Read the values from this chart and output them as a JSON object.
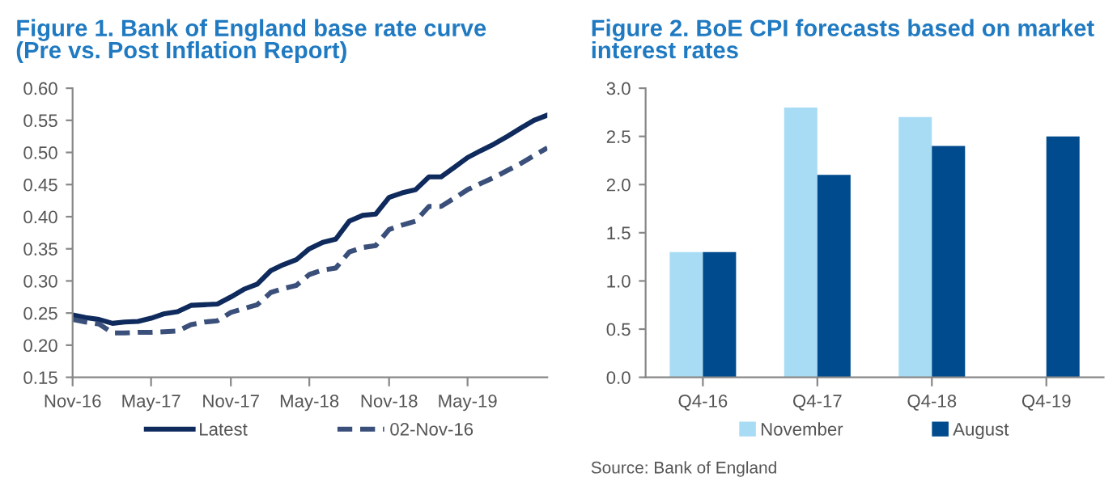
{
  "chart_data": [
    {
      "type": "line",
      "title": "Figure 1. Bank of England base rate curve\n(Pre vs. Post Inflation Report)",
      "x": [
        "2016-11",
        "2016-12",
        "2017-01",
        "2017-02",
        "2017-03",
        "2017-04",
        "2017-05",
        "2017-06",
        "2017-07",
        "2017-08",
        "2017-09",
        "2017-10",
        "2017-11",
        "2017-12",
        "2018-01",
        "2018-02",
        "2018-03",
        "2018-04",
        "2018-05",
        "2018-06",
        "2018-07",
        "2018-08",
        "2018-09",
        "2018-10",
        "2018-11",
        "2018-12",
        "2019-01",
        "2019-02",
        "2019-03",
        "2019-04",
        "2019-05",
        "2019-06",
        "2019-07",
        "2019-08",
        "2019-09",
        "2019-10",
        "2019-11"
      ],
      "series": [
        {
          "name": "Latest",
          "color": "#0f2a5c",
          "line_style": "solid",
          "values": [
            0.247,
            0.243,
            0.24,
            0.234,
            0.236,
            0.237,
            0.242,
            0.249,
            0.252,
            0.262,
            0.263,
            0.264,
            0.275,
            0.287,
            0.295,
            0.316,
            0.325,
            0.333,
            0.35,
            0.36,
            0.365,
            0.393,
            0.402,
            0.404,
            0.43,
            0.437,
            0.442,
            0.462,
            0.462,
            0.477,
            0.492,
            0.503,
            0.513,
            0.525,
            0.538,
            0.55,
            0.558
          ]
        },
        {
          "name": "02-Nov-16",
          "color": "#3a4f7a",
          "line_style": "dashed",
          "values": [
            0.24,
            0.236,
            0.233,
            0.219,
            0.219,
            0.22,
            0.22,
            0.221,
            0.222,
            0.232,
            0.236,
            0.238,
            0.251,
            0.257,
            0.263,
            0.282,
            0.288,
            0.293,
            0.31,
            0.317,
            0.32,
            0.345,
            0.352,
            0.355,
            0.38,
            0.387,
            0.393,
            0.416,
            0.416,
            0.429,
            0.442,
            0.452,
            0.461,
            0.472,
            0.483,
            0.495,
            0.507
          ]
        }
      ],
      "xlim": [
        "2016-11",
        "2019-11"
      ],
      "xticks": [
        {
          "value": "2016-11",
          "label": "Nov-16"
        },
        {
          "value": "2017-05",
          "label": "May-17"
        },
        {
          "value": "2017-11",
          "label": "Nov-17"
        },
        {
          "value": "2018-05",
          "label": "May-18"
        },
        {
          "value": "2018-11",
          "label": "Nov-18"
        },
        {
          "value": "2019-05",
          "label": "May-19"
        }
      ],
      "ylim": [
        0.15,
        0.6
      ],
      "yticks": [
        {
          "value": 0.15,
          "label": "0.15"
        },
        {
          "value": 0.2,
          "label": "0.20"
        },
        {
          "value": 0.25,
          "label": "0.25"
        },
        {
          "value": 0.3,
          "label": "0.30"
        },
        {
          "value": 0.35,
          "label": "0.35"
        },
        {
          "value": 0.4,
          "label": "0.40"
        },
        {
          "value": 0.45,
          "label": "0.45"
        },
        {
          "value": 0.5,
          "label": "0.50"
        },
        {
          "value": 0.55,
          "label": "0.55"
        },
        {
          "value": 0.6,
          "label": "0.60"
        }
      ],
      "grid": false,
      "legend": "bottom"
    },
    {
      "type": "bar",
      "title": "Figure 2. BoE CPI forecasts based on market\ninterest rates",
      "categories": [
        "Q4-16",
        "Q4-17",
        "Q4-18",
        "Q4-19"
      ],
      "series": [
        {
          "name": "November",
          "color": "#a8dcf5",
          "values": [
            1.3,
            2.8,
            2.7,
            null
          ]
        },
        {
          "name": "August",
          "color": "#004b8d",
          "values": [
            1.3,
            2.1,
            2.4,
            2.5
          ]
        }
      ],
      "ylim": [
        0,
        3
      ],
      "yticks": [
        {
          "value": 0,
          "label": "0.0"
        },
        {
          "value": 0.5,
          "label": "0.5"
        },
        {
          "value": 1,
          "label": "1.0"
        },
        {
          "value": 1.5,
          "label": "1.5"
        },
        {
          "value": 2,
          "label": "2.0"
        },
        {
          "value": 2.5,
          "label": "2.5"
        },
        {
          "value": 3,
          "label": "3.0"
        }
      ],
      "grid": false,
      "legend": "bottom",
      "annotations": [
        "Source: Bank of England"
      ]
    }
  ]
}
